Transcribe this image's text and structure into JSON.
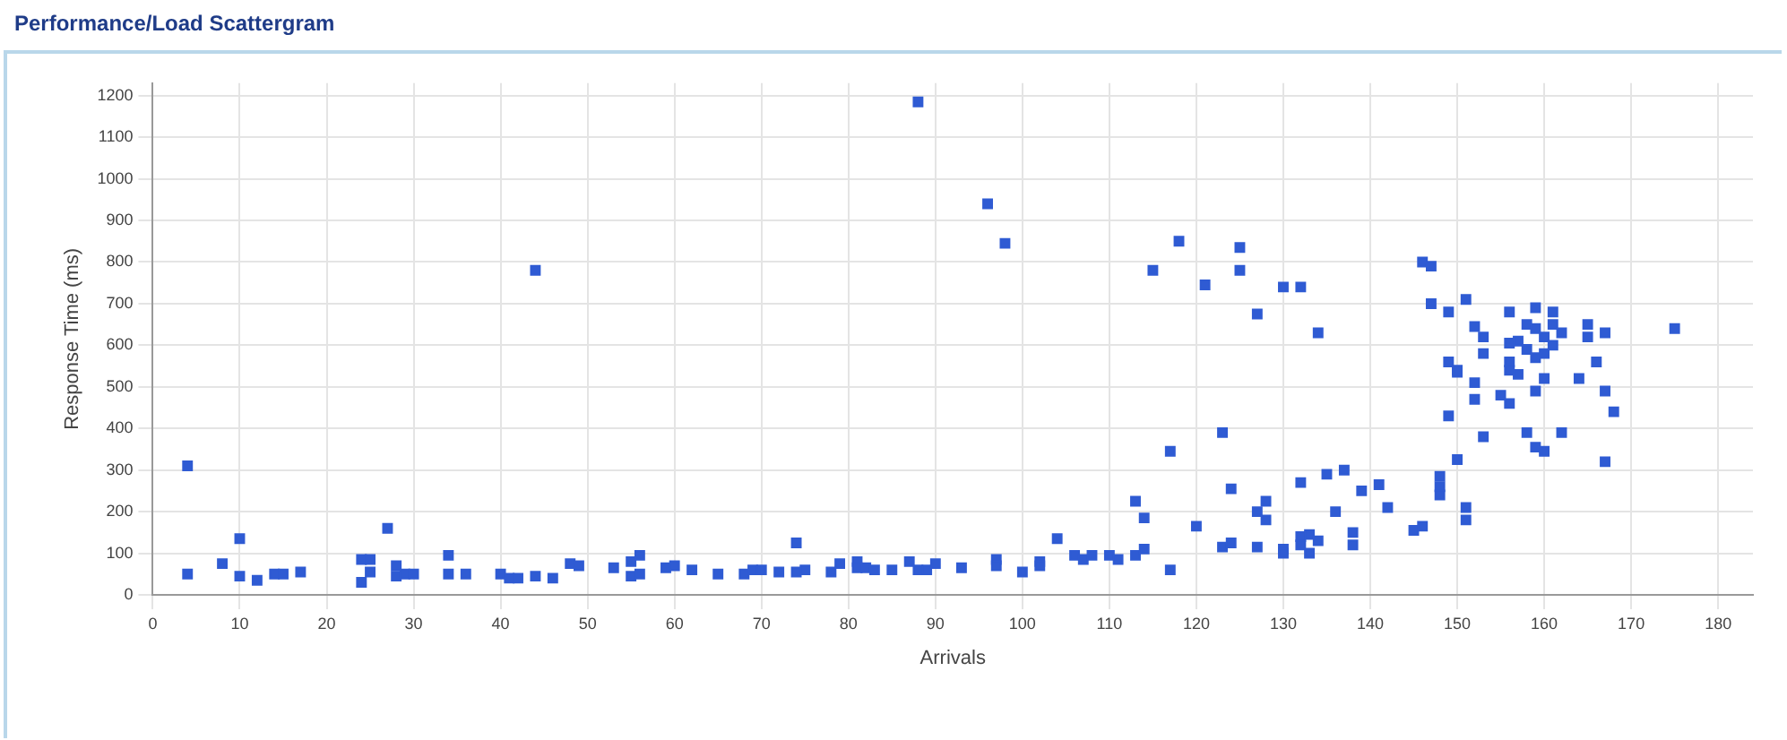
{
  "chart_data": {
    "type": "scatter",
    "title": "Performance/Load Scattergram",
    "xlabel": "Arrivals",
    "ylabel": "Response Time (ms)",
    "xlim": [
      0,
      184
    ],
    "xticks": [
      0,
      10,
      20,
      30,
      40,
      50,
      60,
      70,
      80,
      90,
      100,
      110,
      120,
      130,
      140,
      150,
      160,
      170,
      180
    ],
    "ylim": [
      0,
      1230
    ],
    "yticks": [
      0,
      100,
      200,
      300,
      400,
      500,
      600,
      700,
      800,
      900,
      1000,
      1100,
      1200
    ],
    "grid": true,
    "marker": "square",
    "series": [
      {
        "color": "#2f5bd3",
        "x": [
          4,
          4,
          8,
          10,
          10,
          12,
          14,
          15,
          17,
          24,
          24,
          25,
          25,
          27,
          28,
          28,
          29,
          30,
          34,
          34,
          36,
          40,
          41,
          42,
          44,
          44,
          46,
          48,
          49,
          53,
          55,
          55,
          56,
          56,
          59,
          60,
          62,
          65,
          68,
          69,
          70,
          72,
          74,
          74,
          75,
          78,
          79,
          81,
          81,
          82,
          83,
          85,
          87,
          88,
          88,
          89,
          90,
          93,
          96,
          97,
          97,
          98,
          100,
          102,
          102,
          104,
          106,
          107,
          108,
          110,
          111,
          113,
          113,
          114,
          114,
          115,
          117,
          117,
          118,
          120,
          121,
          123,
          123,
          124,
          124,
          125,
          125,
          127,
          127,
          127,
          128,
          128,
          130,
          130,
          130,
          132,
          132,
          132,
          132,
          133,
          133,
          134,
          134,
          135,
          136,
          137,
          138,
          138,
          139,
          141,
          142,
          145,
          146,
          146,
          147,
          147,
          148,
          148,
          148,
          149,
          149,
          149,
          150,
          150,
          150,
          151,
          151,
          151,
          152,
          152,
          152,
          153,
          153,
          153,
          155,
          156,
          156,
          156,
          156,
          156,
          157,
          157,
          158,
          158,
          158,
          159,
          159,
          159,
          159,
          159,
          160,
          160,
          160,
          160,
          161,
          161,
          161,
          162,
          162,
          164,
          165,
          165,
          166,
          167,
          167,
          167,
          168,
          175
        ],
        "values": [
          310,
          50,
          75,
          135,
          45,
          35,
          50,
          50,
          55,
          30,
          85,
          85,
          55,
          160,
          70,
          45,
          50,
          50,
          95,
          50,
          50,
          50,
          40,
          40,
          780,
          45,
          40,
          75,
          70,
          65,
          80,
          45,
          95,
          50,
          65,
          70,
          60,
          50,
          50,
          60,
          60,
          55,
          125,
          55,
          60,
          55,
          75,
          80,
          65,
          65,
          60,
          60,
          80,
          1185,
          60,
          60,
          75,
          65,
          940,
          85,
          70,
          845,
          55,
          80,
          70,
          135,
          95,
          85,
          95,
          95,
          85,
          225,
          95,
          185,
          110,
          780,
          345,
          60,
          850,
          165,
          745,
          390,
          115,
          255,
          125,
          835,
          780,
          675,
          200,
          115,
          225,
          180,
          740,
          110,
          100,
          740,
          270,
          140,
          120,
          145,
          100,
          630,
          130,
          290,
          200,
          300,
          150,
          120,
          250,
          265,
          210,
          155,
          800,
          165,
          790,
          700,
          285,
          260,
          240,
          680,
          560,
          430,
          535,
          325,
          540,
          710,
          210,
          180,
          645,
          510,
          470,
          620,
          580,
          380,
          480,
          680,
          605,
          560,
          540,
          460,
          610,
          530,
          650,
          590,
          390,
          690,
          640,
          570,
          490,
          355,
          620,
          580,
          520,
          345,
          680,
          650,
          600,
          630,
          390,
          520,
          650,
          620,
          560,
          630,
          490,
          320,
          440,
          640
        ]
      }
    ]
  }
}
